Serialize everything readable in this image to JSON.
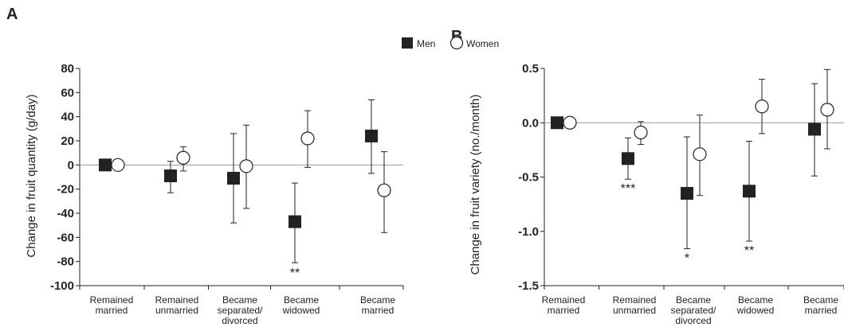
{
  "legend": {
    "entries": [
      {
        "label": "Men",
        "marker": "filled-square"
      },
      {
        "label": "Women",
        "marker": "open-circle"
      }
    ]
  },
  "chart_data": [
    {
      "panel": "A",
      "type": "scatter",
      "ylabel": "Change in fruit quantity (g/day)",
      "xlabel": "",
      "ylim": [
        -100,
        80
      ],
      "yticks": [
        "80",
        "60",
        "40",
        "20",
        "0",
        "-20",
        "-40",
        "-60",
        "-80",
        "-100"
      ],
      "categories": [
        "Remained married",
        "Remained unmarried",
        "Became separated/ divorced",
        "Became widowed",
        "Became married"
      ],
      "category_lines": [
        [
          "Remained",
          "married"
        ],
        [
          "Remained",
          "unmarried"
        ],
        [
          "Became",
          "separated/",
          "divorced"
        ],
        [
          "Became",
          "widowed"
        ],
        [
          "Became",
          "married"
        ]
      ],
      "series": [
        {
          "name": "Men",
          "values": [
            0,
            -9,
            -11,
            -47,
            24
          ],
          "lower": [
            0,
            -23,
            -48,
            -81,
            -7
          ],
          "upper": [
            0,
            3,
            26,
            -15,
            54
          ],
          "significance": [
            "",
            "",
            "",
            "**",
            ""
          ]
        },
        {
          "name": "Women",
          "values": [
            0,
            6,
            -1,
            22,
            -21
          ],
          "lower": [
            0,
            -5,
            -36,
            -2,
            -56
          ],
          "upper": [
            0,
            15,
            33,
            45,
            11
          ],
          "significance": [
            "",
            "",
            "",
            "",
            ""
          ]
        }
      ],
      "grid": false,
      "legend_position": "top-right"
    },
    {
      "panel": "B",
      "type": "scatter",
      "ylabel": "Change in fruit variety (no./month)",
      "xlabel": "",
      "ylim": [
        -1.5,
        0.5
      ],
      "yticks": [
        "0.5",
        "0.0",
        "-0.5",
        "-1.0",
        "-1.5"
      ],
      "categories": [
        "Remained married",
        "Remained unmarried",
        "Became separated/ divorced",
        "Became widowed",
        "Became married"
      ],
      "category_lines": [
        [
          "Remained",
          "married"
        ],
        [
          "Remained",
          "unmarried"
        ],
        [
          "Became",
          "separated/",
          "divorced"
        ],
        [
          "Became",
          "widowed"
        ],
        [
          "Became",
          "married"
        ]
      ],
      "series": [
        {
          "name": "Men",
          "values": [
            0,
            -0.33,
            -0.65,
            -0.63,
            -0.06
          ],
          "lower": [
            0,
            -0.52,
            -1.16,
            -1.09,
            -0.49
          ],
          "upper": [
            0,
            -0.14,
            -0.13,
            -0.17,
            0.36
          ],
          "significance": [
            "",
            "***",
            "*",
            "**",
            ""
          ]
        },
        {
          "name": "Women",
          "values": [
            0,
            -0.09,
            -0.29,
            0.15,
            0.12
          ],
          "lower": [
            0,
            -0.2,
            -0.67,
            -0.1,
            -0.24
          ],
          "upper": [
            0,
            0.01,
            0.07,
            0.4,
            0.49
          ],
          "significance": [
            "",
            "",
            "",
            "",
            ""
          ]
        }
      ],
      "grid": false
    }
  ]
}
